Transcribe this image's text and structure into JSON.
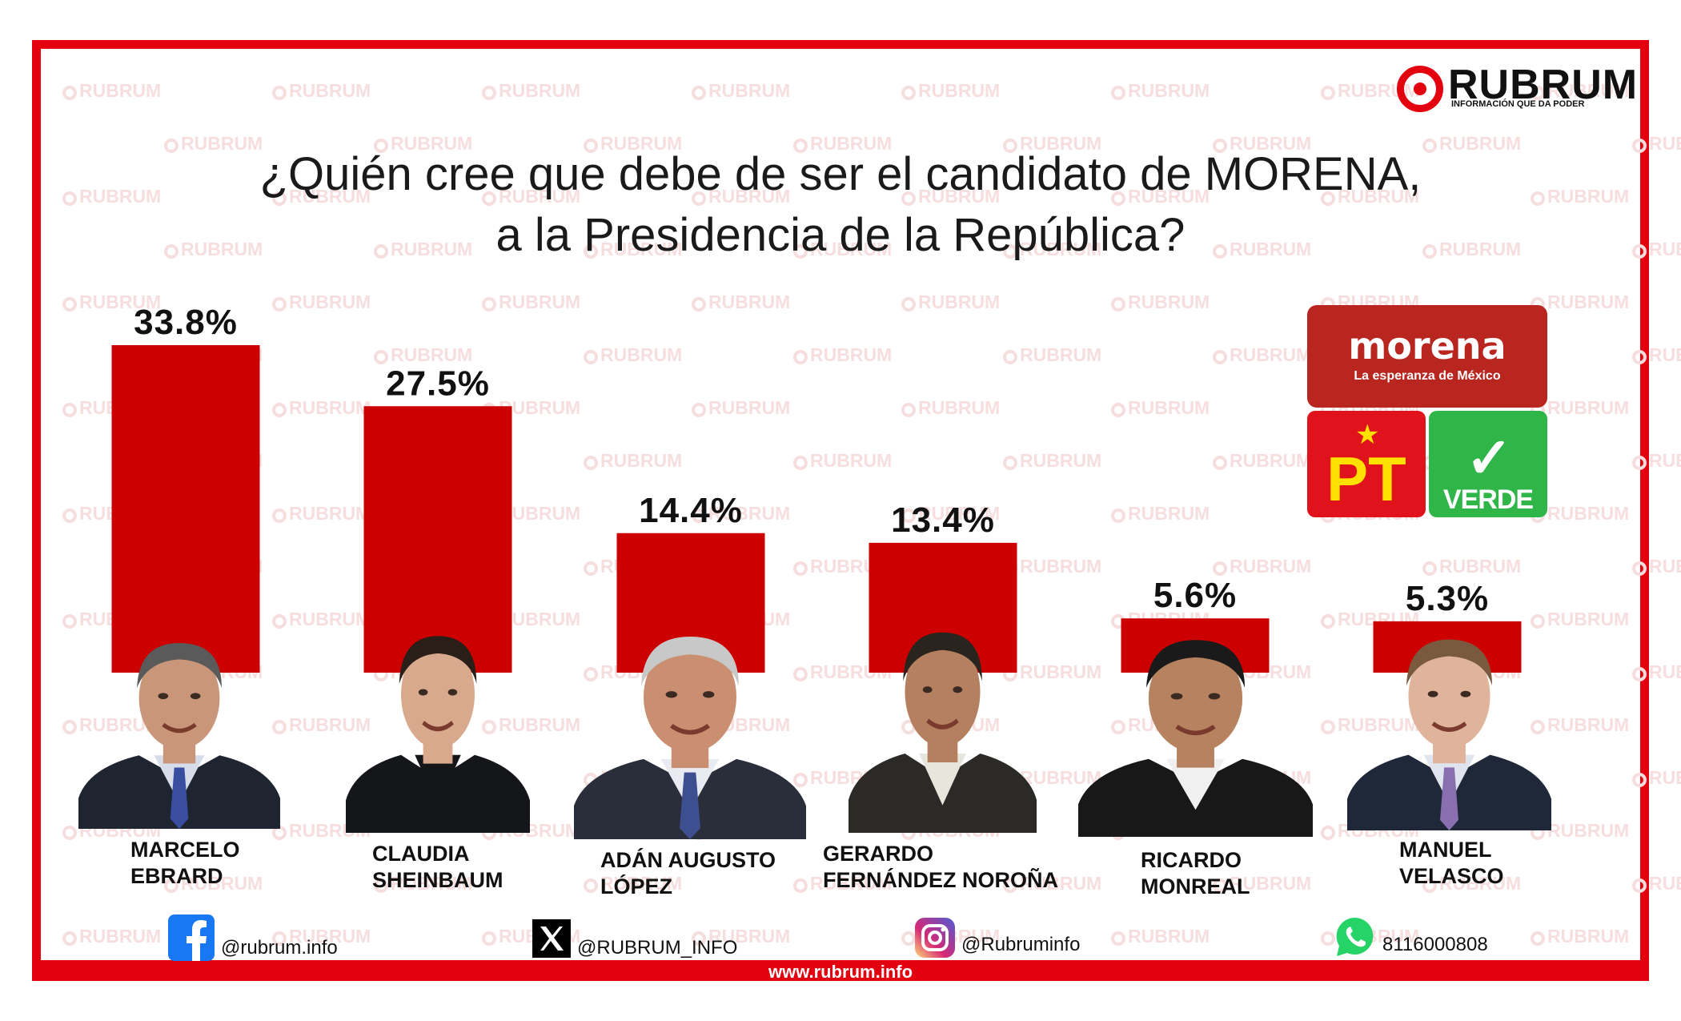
{
  "brand": {
    "name": "RUBRUM",
    "tagline": "INFORMACIÓN QUE DA PODER",
    "watermark": "RUBRUM",
    "accent_color": "#e3000f"
  },
  "title": {
    "line1": "¿Quién cree que debe de ser el candidato de MORENA,",
    "line2": "a la Presidencia de la República?"
  },
  "chart_data": {
    "type": "bar",
    "title": "¿Quién cree que debe de ser el candidato de MORENA, a la Presidencia de la República?",
    "categories": [
      "MARCELO EBRARD",
      "CLAUDIA SHEINBAUM",
      "ADÁN AUGUSTO LÓPEZ",
      "GERARDO FERNÁNDEZ NOROÑA",
      "RICARDO MONREAL",
      "MANUEL VELASCO"
    ],
    "values": [
      33.8,
      27.5,
      14.4,
      13.4,
      5.6,
      5.3
    ],
    "value_labels": [
      "33.8%",
      "27.5%",
      "14.4%",
      "13.4%",
      "5.6%",
      "5.3%"
    ],
    "unit": "%",
    "bar_color": "#cc0000",
    "grid": false,
    "legend": "none"
  },
  "candidates": [
    {
      "name": "MARCELO\nEBRARD"
    },
    {
      "name": "CLAUDIA\nSHEINBAUM"
    },
    {
      "name": "ADÁN AUGUSTO\nLÓPEZ"
    },
    {
      "name": "GERARDO\nFERNÁNDEZ NOROÑA"
    },
    {
      "name": "RICARDO\nMONREAL"
    },
    {
      "name": "MANUEL\nVELASCO"
    }
  ],
  "parties": {
    "morena": {
      "name": "morena",
      "slogan": "La esperanza de México",
      "color": "#b8261f"
    },
    "pt": {
      "name": "PT",
      "color": "#e0121b"
    },
    "verde": {
      "name": "VERDE",
      "color": "#2fb548"
    }
  },
  "social": {
    "facebook": "@rubrum.info",
    "x": "@RUBRUM_INFO",
    "instagram": "@Rubruminfo",
    "whatsapp": "8116000808"
  },
  "website": "www.rubrum.info"
}
